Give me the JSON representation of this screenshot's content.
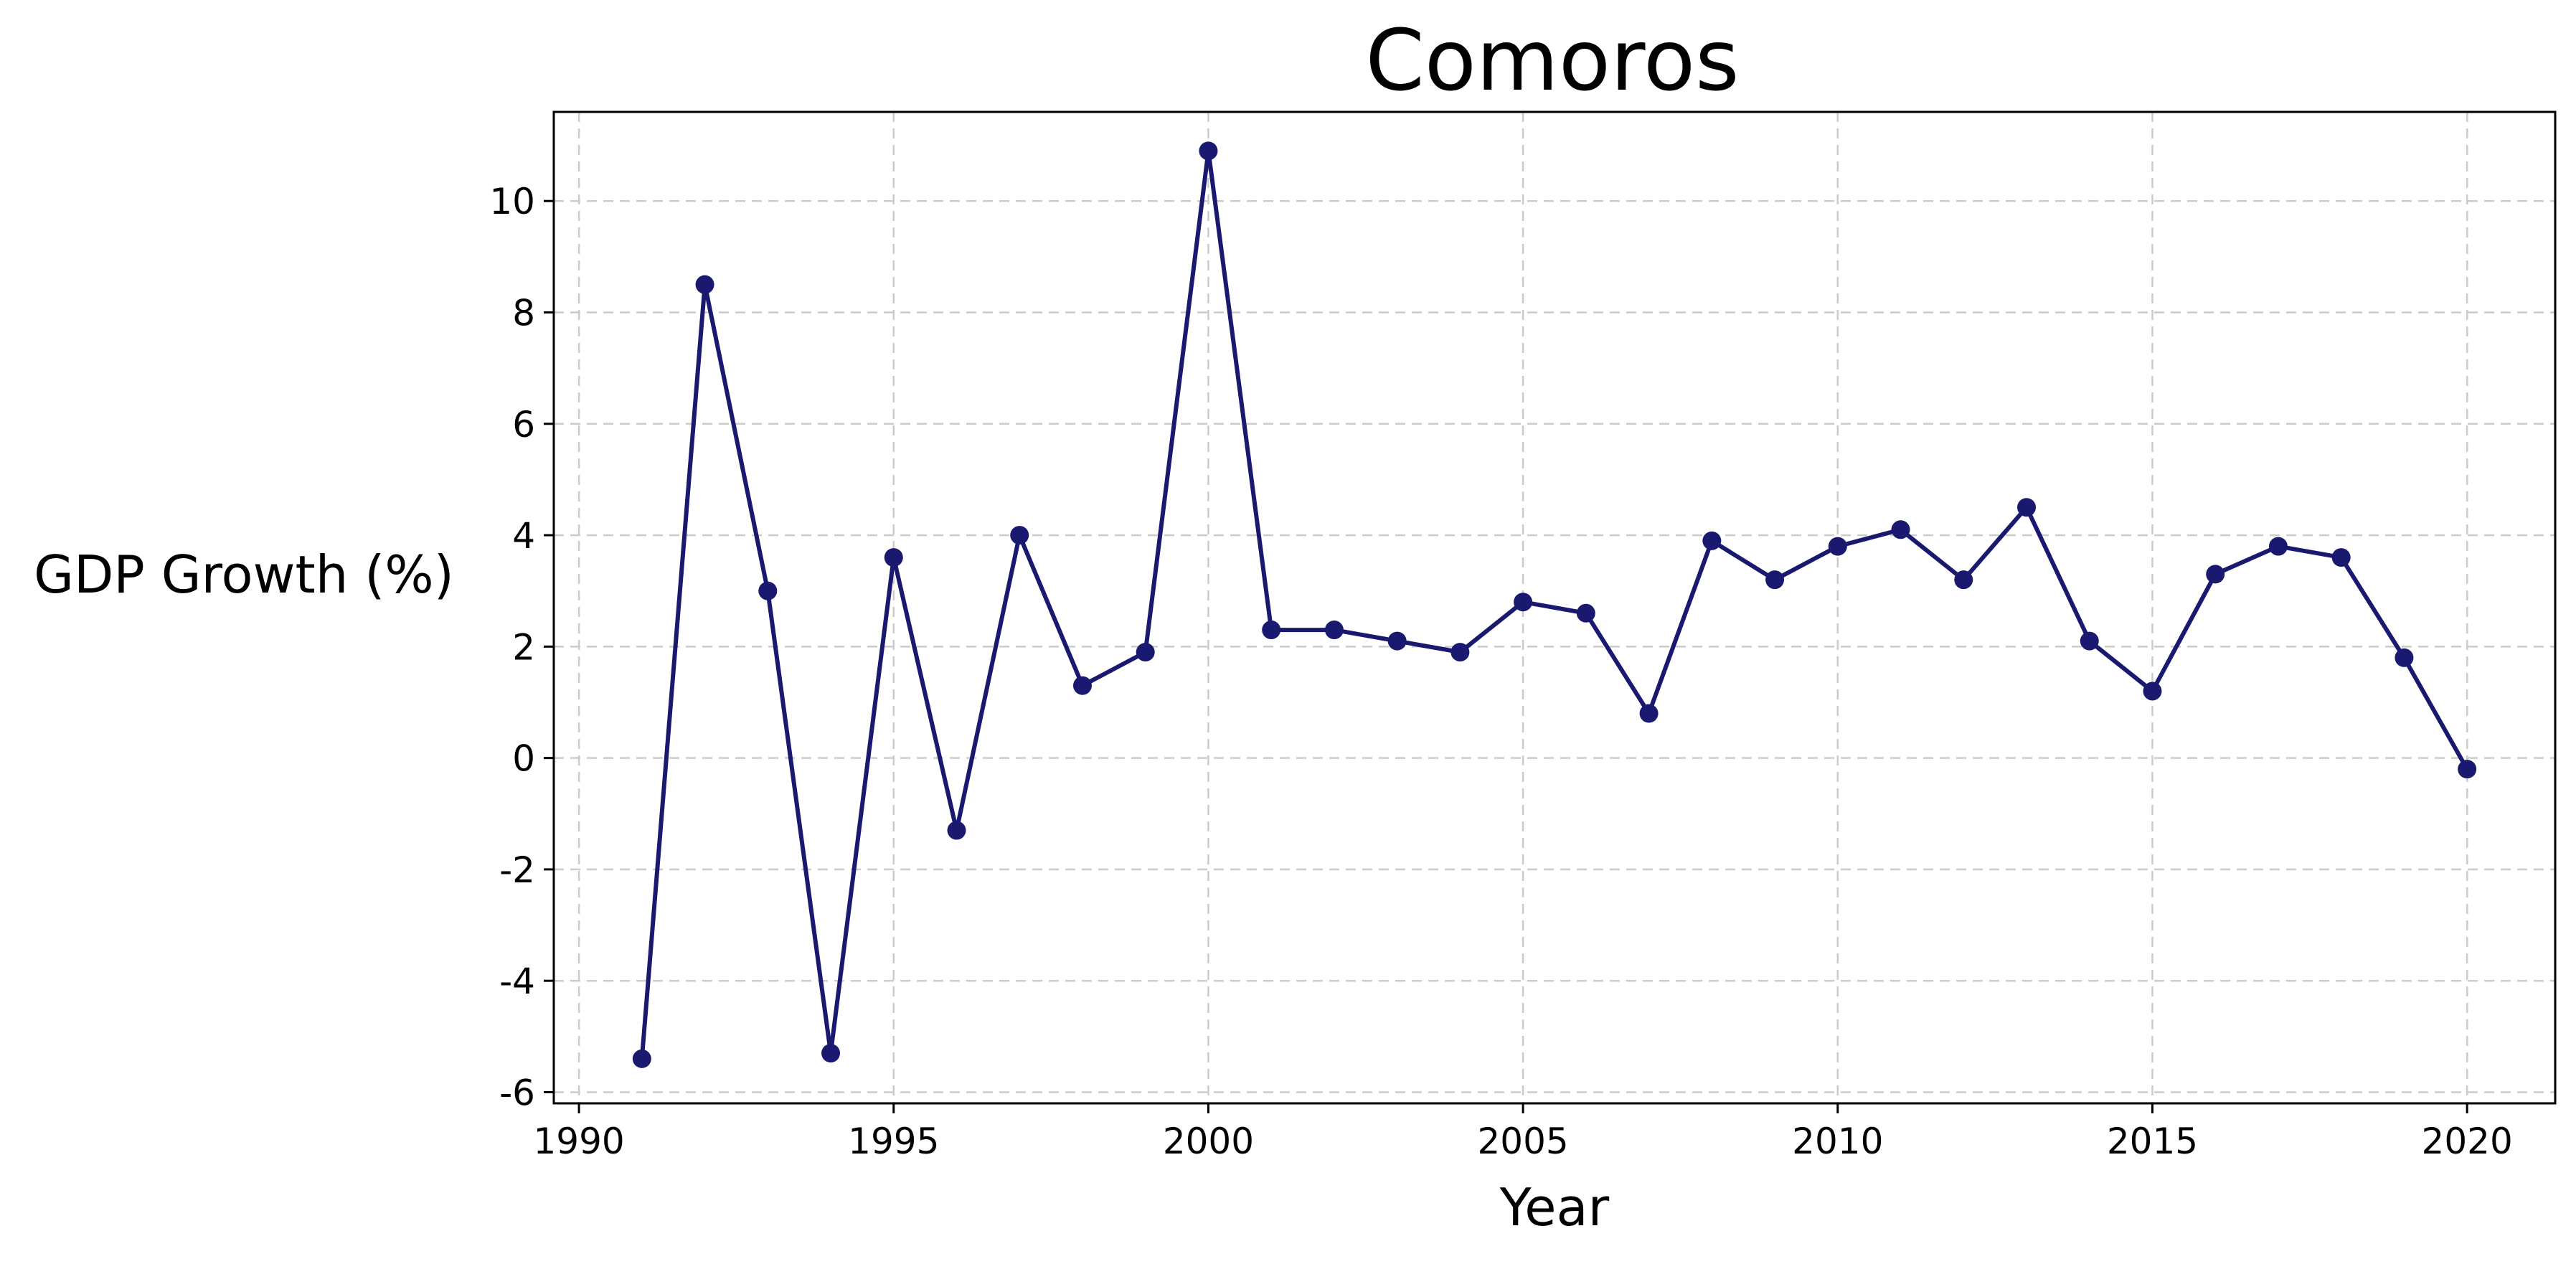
{
  "chart_data": {
    "type": "line",
    "title": "Comoros",
    "xlabel": "Year",
    "ylabel": "GDP Growth (%)",
    "xlim": [
      1989.6,
      2021.4
    ],
    "ylim": [
      -6.2,
      11.6
    ],
    "xticks": [
      1990,
      1995,
      2000,
      2005,
      2010,
      2015,
      2020
    ],
    "yticks": [
      -6,
      -4,
      -2,
      0,
      2,
      4,
      6,
      8,
      10
    ],
    "grid": true,
    "series": [
      {
        "color": "#191970",
        "x": [
          1991,
          1992,
          1993,
          1994,
          1995,
          1996,
          1997,
          1998,
          1999,
          2000,
          2001,
          2002,
          2003,
          2004,
          2005,
          2006,
          2007,
          2008,
          2009,
          2010,
          2011,
          2012,
          2013,
          2014,
          2015,
          2016,
          2017,
          2018,
          2019,
          2020
        ],
        "y": [
          -5.4,
          8.5,
          3.0,
          -5.3,
          3.6,
          -1.3,
          4.0,
          1.3,
          1.9,
          10.9,
          2.3,
          2.3,
          2.1,
          1.9,
          2.8,
          2.6,
          0.8,
          3.9,
          3.2,
          3.8,
          4.1,
          3.2,
          4.5,
          2.1,
          1.2,
          3.3,
          3.8,
          3.6,
          1.8,
          -0.2
        ]
      }
    ]
  }
}
